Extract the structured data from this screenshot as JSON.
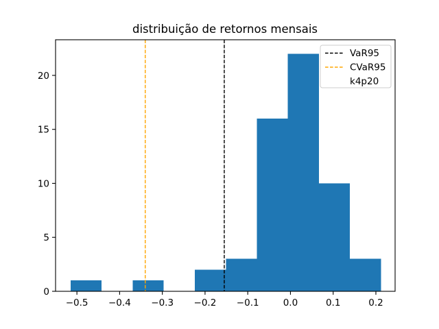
{
  "chart_data": {
    "type": "histogram",
    "title": "distribuição de retornos mensais",
    "xlabel": "",
    "ylabel": "",
    "bar_color": "#1f77b4",
    "bin_edges": [
      -0.515,
      -0.442,
      -0.369,
      -0.297,
      -0.224,
      -0.151,
      -0.079,
      -0.006,
      0.067,
      0.139,
      0.212
    ],
    "counts": [
      1,
      0,
      1,
      0,
      2,
      3,
      16,
      22,
      10,
      3
    ],
    "xlim": [
      -0.55,
      0.245
    ],
    "ylim": [
      0,
      23.3
    ],
    "xticks": [
      -0.5,
      -0.4,
      -0.3,
      -0.2,
      -0.1,
      0.0,
      0.1,
      0.2
    ],
    "xtick_labels": [
      "−0.5",
      "−0.4",
      "−0.3",
      "−0.2",
      "−0.1",
      "0.0",
      "0.1",
      "0.2"
    ],
    "yticks": [
      0,
      5,
      10,
      15,
      20
    ],
    "ytick_labels": [
      "0",
      "5",
      "10",
      "15",
      "20"
    ],
    "grid": false,
    "vlines": [
      {
        "name": "VaR95",
        "x": -0.155,
        "color": "#000000",
        "style": "dashed"
      },
      {
        "name": "CVaR95",
        "x": -0.34,
        "color": "#ffa500",
        "style": "dashed"
      }
    ],
    "legend": {
      "position": "upper right",
      "entries": [
        {
          "label": "VaR95",
          "color": "#000000",
          "dash": true
        },
        {
          "label": "CVaR95",
          "color": "#ffa500",
          "dash": true
        },
        {
          "label": "k4p20",
          "color": "none",
          "dash": false
        }
      ]
    }
  }
}
